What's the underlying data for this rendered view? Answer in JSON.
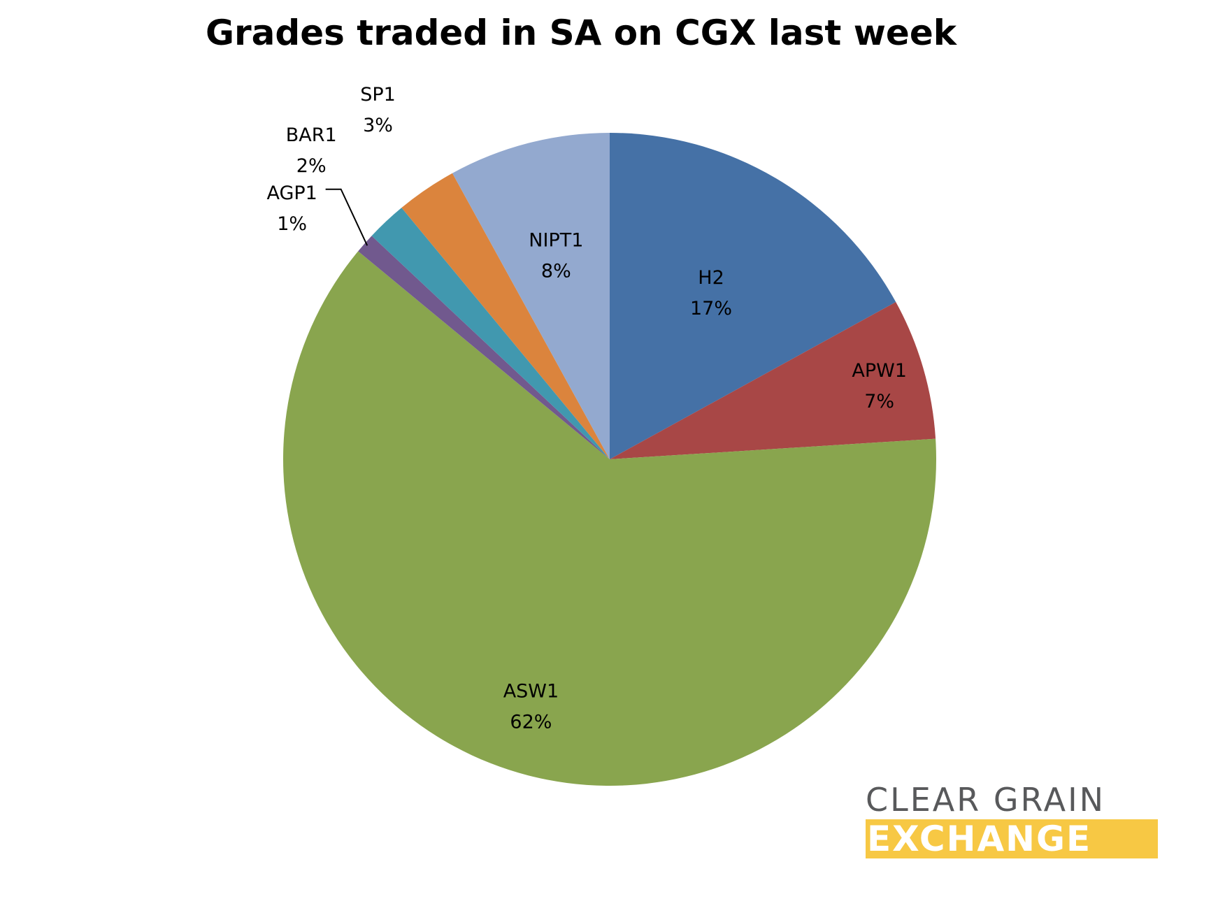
{
  "chart_data": {
    "type": "pie",
    "title": "Grades traded in SA on CGX last week",
    "slices": [
      {
        "label": "H2",
        "value": 17,
        "value_label": "17%",
        "color": "#4571a6"
      },
      {
        "label": "APW1",
        "value": 7,
        "value_label": "7%",
        "color": "#a84746"
      },
      {
        "label": "ASW1",
        "value": 62,
        "value_label": "62%",
        "color": "#89a54e"
      },
      {
        "label": "AGP1",
        "value": 1,
        "value_label": "1%",
        "color": "#71598e"
      },
      {
        "label": "BAR1",
        "value": 2,
        "value_label": "2%",
        "color": "#4198af"
      },
      {
        "label": "SP1",
        "value": 3,
        "value_label": "3%",
        "color": "#db843d"
      },
      {
        "label": "NIPT1",
        "value": 8,
        "value_label": "8%",
        "color": "#93a9cf"
      }
    ],
    "start_angle": "12 o'clock",
    "direction": "clockwise",
    "legend": "none"
  },
  "logo": {
    "line1": "CLEAR GRAIN",
    "line2": "EXCHANGE",
    "accent_color": "#f7c844",
    "text_color": "#58595b"
  }
}
